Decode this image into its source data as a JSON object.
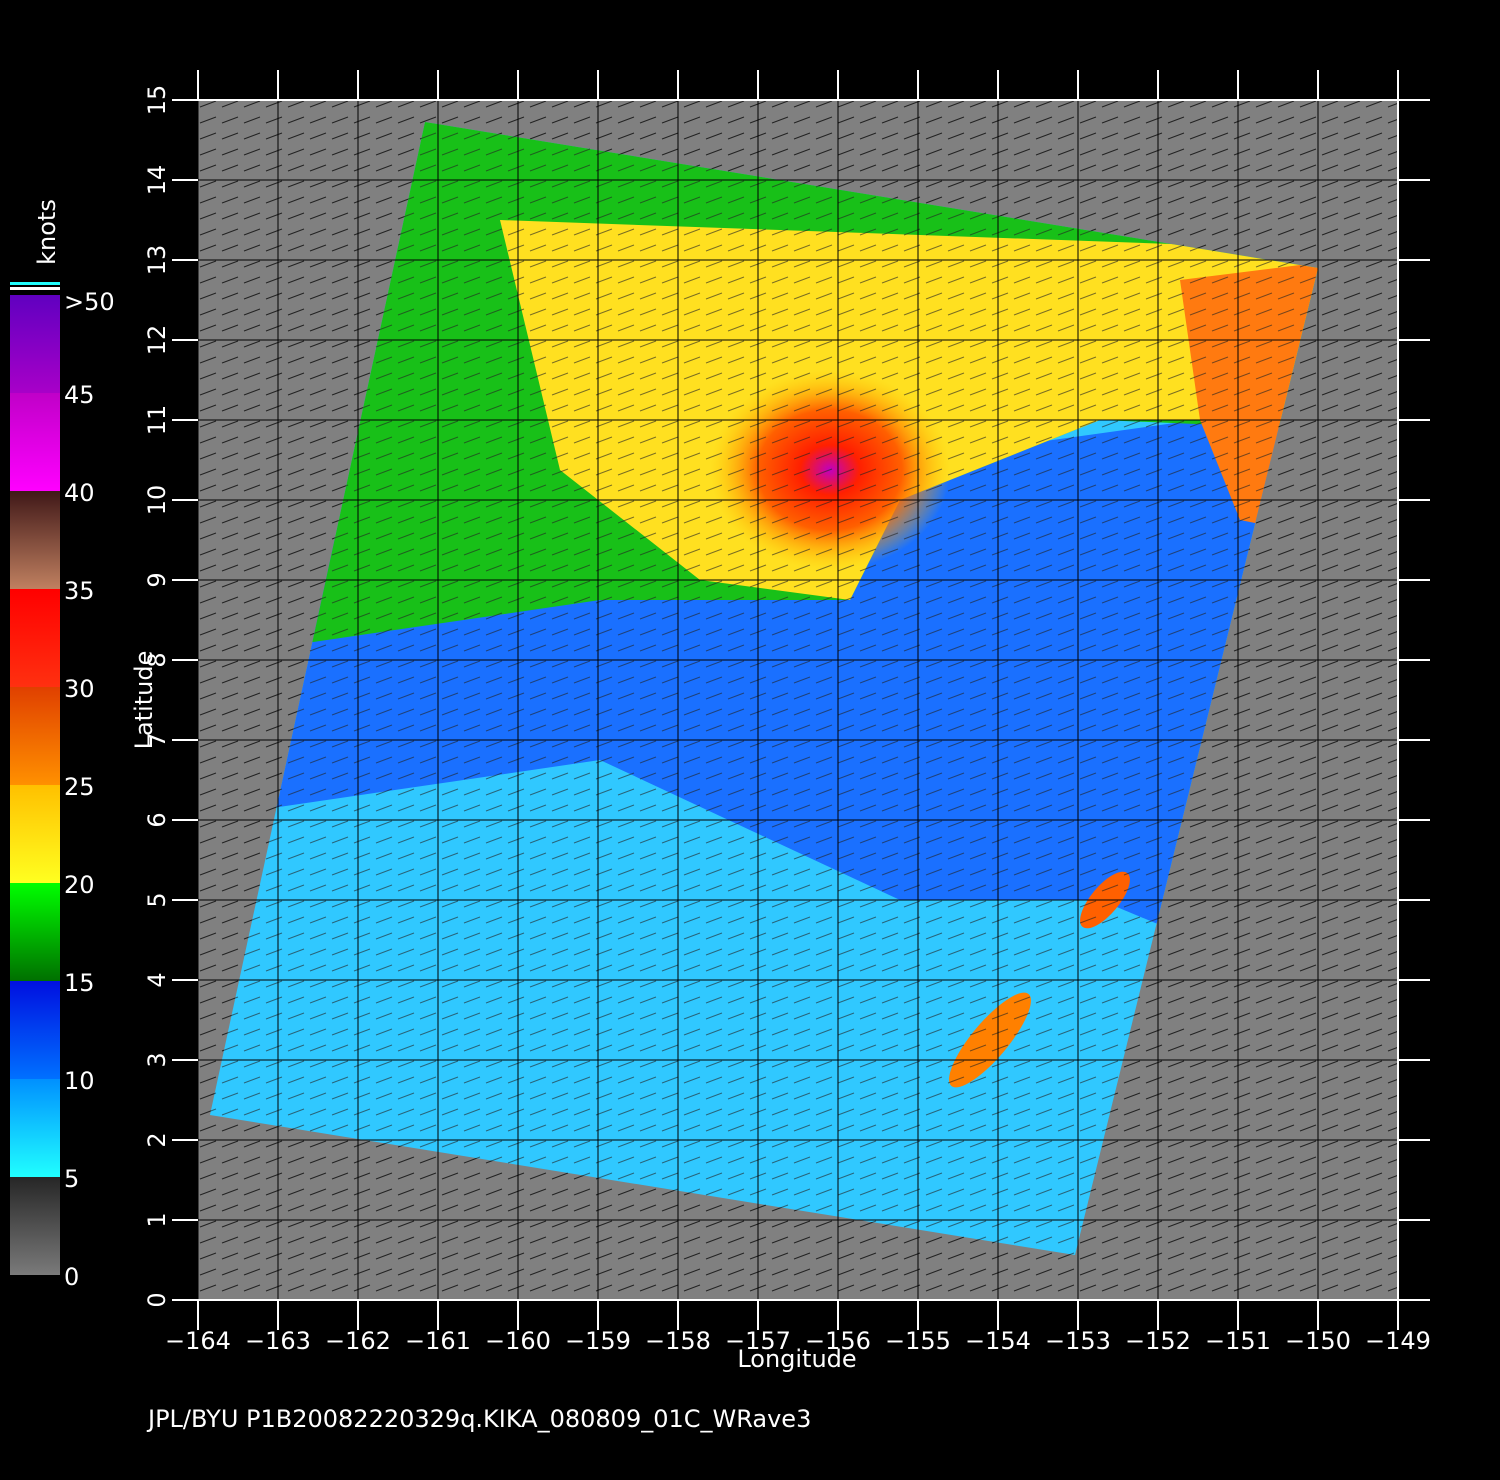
{
  "chart_data": {
    "type": "map",
    "xlabel": "Longitude",
    "ylabel": "Latitude",
    "footer": "JPL/BYU  P1B20082220329q.KIKA_080809_01C_WRave3",
    "xlim": [
      -164,
      -149
    ],
    "ylim": [
      0,
      15
    ],
    "xticks": [
      {
        "value": -164,
        "label": "−164"
      },
      {
        "value": -163,
        "label": "−163"
      },
      {
        "value": -162,
        "label": "−162"
      },
      {
        "value": -161,
        "label": "−161"
      },
      {
        "value": -160,
        "label": "−160"
      },
      {
        "value": -159,
        "label": "−159"
      },
      {
        "value": -158,
        "label": "−158"
      },
      {
        "value": -157,
        "label": "−157"
      },
      {
        "value": -156,
        "label": "−156"
      },
      {
        "value": -155,
        "label": "−155"
      },
      {
        "value": -154,
        "label": "−154"
      },
      {
        "value": -153,
        "label": "−153"
      },
      {
        "value": -152,
        "label": "−152"
      },
      {
        "value": -151,
        "label": "−151"
      },
      {
        "value": -150,
        "label": "−150"
      },
      {
        "value": -149,
        "label": "−149"
      }
    ],
    "yticks": [
      0,
      1,
      2,
      3,
      4,
      5,
      6,
      7,
      8,
      9,
      10,
      11,
      12,
      13,
      14,
      15
    ],
    "grid": true,
    "colorbar": {
      "label": "knots",
      "lim": [
        0,
        50
      ],
      "ticks": [
        0,
        5,
        10,
        15,
        20,
        25,
        30,
        35,
        40,
        45
      ],
      "top_label": ">50",
      "band_colors": [
        [
          "#7a7a7a",
          "#262626"
        ],
        [
          "#20ffff",
          "#0090ff"
        ],
        [
          "#0070ff",
          "#0010e0"
        ],
        [
          "#007000",
          "#00ff00"
        ],
        [
          "#ffff20",
          "#ffc000"
        ],
        [
          "#ff9000",
          "#e04000"
        ],
        [
          "#ff3010",
          "#ff0000"
        ],
        [
          "#c08060",
          "#401818"
        ],
        [
          "#ff00ff",
          "#c000c8"
        ],
        [
          "#a800c8",
          "#6000c0"
        ]
      ]
    }
  }
}
